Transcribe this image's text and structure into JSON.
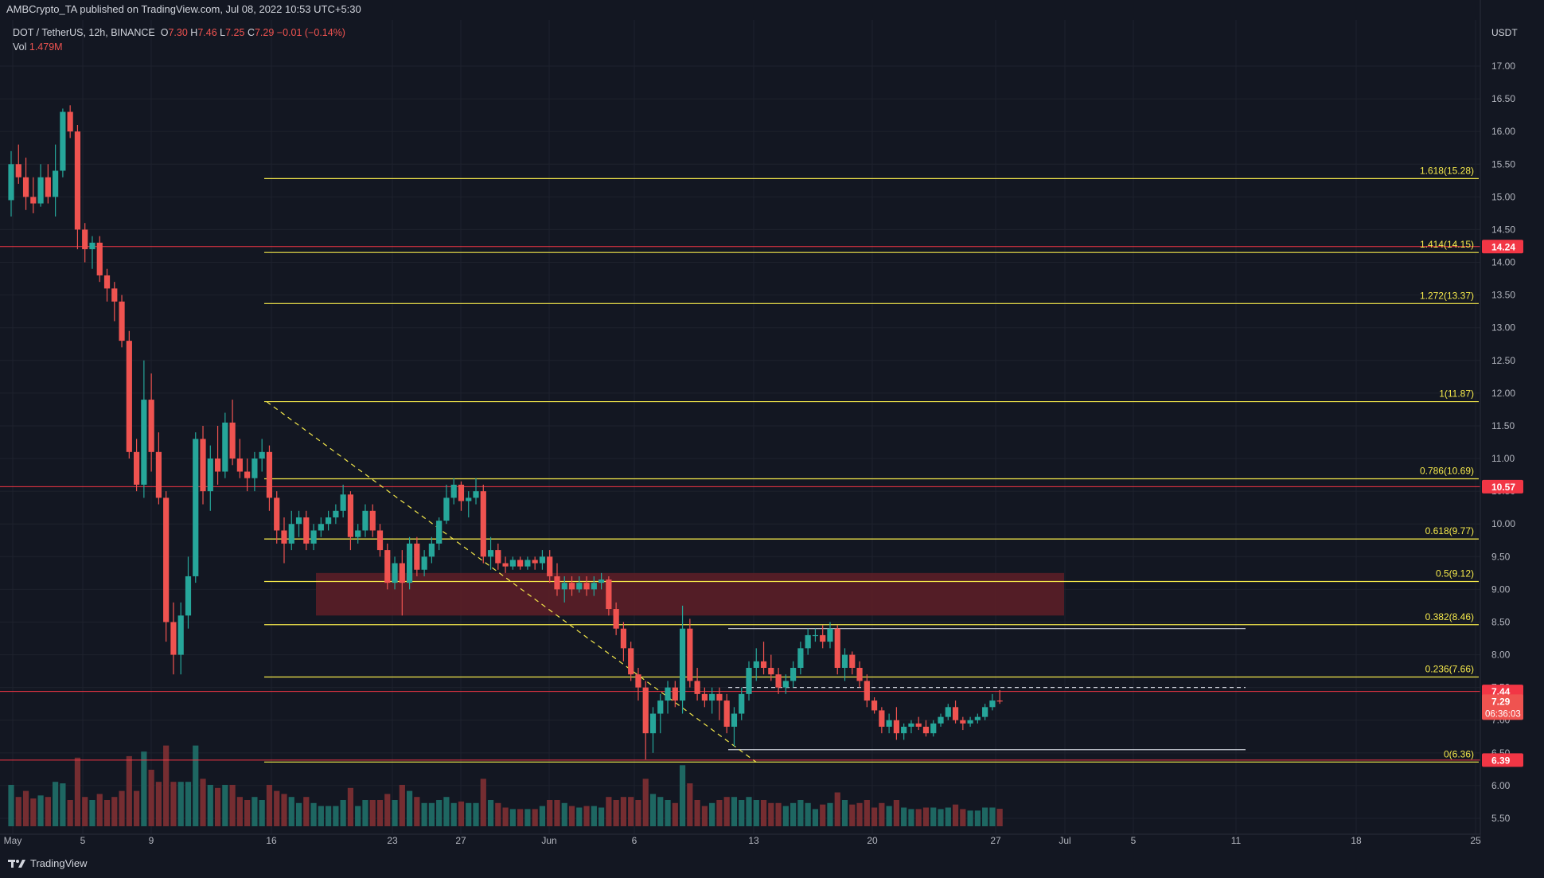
{
  "header": {
    "published_by": "AMBCrypto_TA published on TradingView.com, Jul 08, 2022 10:53 UTC+5:30"
  },
  "symbol": {
    "pair": "DOT / TetherUS, 12h, BINANCE",
    "open_label": "O",
    "open": "7.30",
    "high_label": "H",
    "high": "7.46",
    "low_label": "L",
    "low": "7.25",
    "close_label": "C",
    "close": "7.29",
    "change": "−0.01 (−0.14%)"
  },
  "volume": {
    "label": "Vol",
    "value": "1.479M"
  },
  "brand": {
    "name": "TradingView"
  },
  "colors": {
    "background": "#131722",
    "up": "#26a69a",
    "down": "#ef5350",
    "fib": "#f5e94b",
    "resistance": "#f23645",
    "zone": "#5b1e27",
    "range": "#d1d4dc"
  },
  "chart_data": {
    "type": "candlestick",
    "axis_currency": "USDT",
    "y_ticks": [
      "5.50",
      "6.00",
      "6.50",
      "7.00",
      "7.50",
      "8.00",
      "8.50",
      "9.00",
      "9.50",
      "10.00",
      "10.50",
      "11.00",
      "11.50",
      "12.00",
      "12.50",
      "13.00",
      "13.50",
      "14.00",
      "14.50",
      "15.00",
      "15.50",
      "16.00",
      "16.50",
      "17.00"
    ],
    "ylim": [
      5.3,
      17.5
    ],
    "x_tick_labels": [
      "May",
      "5",
      "9",
      "16",
      "23",
      "27",
      "Jun",
      "6",
      "13",
      "20",
      "27",
      "Jul",
      "5",
      "11",
      "18",
      "25"
    ],
    "fib_levels": [
      {
        "label": "1.618(15.28)",
        "value": 15.28
      },
      {
        "label": "1.414(14.15)",
        "value": 14.15
      },
      {
        "label": "1.272(13.37)",
        "value": 13.37
      },
      {
        "label": "1(11.87)",
        "value": 11.87
      },
      {
        "label": "0.786(10.69)",
        "value": 10.69
      },
      {
        "label": "0.618(9.77)",
        "value": 9.77
      },
      {
        "label": "0.5(9.12)",
        "value": 9.12
      },
      {
        "label": "0.382(8.46)",
        "value": 8.46
      },
      {
        "label": "0.236(7.66)",
        "value": 7.66
      },
      {
        "label": "0(6.36)",
        "value": 6.36
      }
    ],
    "horizontal_levels": [
      {
        "label": "14.24",
        "value": 14.24
      },
      {
        "label": "10.57",
        "value": 10.57
      },
      {
        "label": "7.44",
        "value": 7.44
      },
      {
        "label": "6.39",
        "value": 6.39
      }
    ],
    "current_price": {
      "label": "7.29",
      "value": 7.29,
      "countdown": "06:36:03"
    },
    "demand_zone": {
      "low": 8.6,
      "high": 9.25
    },
    "range_lines": {
      "high": 8.4,
      "mid": 7.5,
      "low": 6.55
    },
    "trendline": {
      "from": 11.87,
      "to": 6.36
    },
    "candles": [
      [
        14.95,
        15.7,
        14.7,
        15.5
      ],
      [
        15.5,
        15.8,
        15.2,
        15.3
      ],
      [
        15.3,
        15.6,
        14.8,
        15.0
      ],
      [
        15.0,
        15.3,
        14.75,
        14.9
      ],
      [
        14.9,
        15.5,
        14.85,
        15.3
      ],
      [
        15.3,
        15.5,
        14.9,
        15.0
      ],
      [
        15.0,
        15.8,
        14.7,
        15.4
      ],
      [
        15.4,
        16.35,
        15.3,
        16.3
      ],
      [
        16.3,
        16.4,
        15.9,
        16.0
      ],
      [
        16.0,
        16.1,
        14.2,
        14.5
      ],
      [
        14.5,
        14.6,
        14.0,
        14.2
      ],
      [
        14.2,
        14.4,
        13.9,
        14.3
      ],
      [
        14.3,
        14.4,
        13.7,
        13.8
      ],
      [
        13.8,
        13.9,
        13.4,
        13.6
      ],
      [
        13.6,
        13.7,
        13.1,
        13.4
      ],
      [
        13.4,
        13.5,
        12.7,
        12.8
      ],
      [
        12.8,
        12.95,
        11.0,
        11.1
      ],
      [
        11.1,
        11.3,
        10.5,
        10.6
      ],
      [
        10.6,
        12.5,
        10.4,
        11.9
      ],
      [
        11.9,
        12.3,
        10.8,
        11.1
      ],
      [
        11.1,
        11.4,
        10.3,
        10.4
      ],
      [
        10.4,
        10.5,
        8.2,
        8.5
      ],
      [
        8.5,
        8.8,
        7.7,
        8.0
      ],
      [
        8.0,
        8.8,
        7.7,
        8.6
      ],
      [
        8.6,
        9.5,
        8.4,
        9.2
      ],
      [
        9.2,
        11.4,
        9.1,
        11.3
      ],
      [
        11.3,
        11.5,
        10.3,
        10.5
      ],
      [
        10.5,
        11.2,
        10.2,
        11.0
      ],
      [
        11.0,
        11.5,
        10.6,
        10.8
      ],
      [
        10.8,
        11.7,
        10.7,
        11.55
      ],
      [
        11.55,
        11.9,
        10.9,
        11.0
      ],
      [
        11.0,
        11.3,
        10.7,
        10.8
      ],
      [
        10.8,
        11.0,
        10.5,
        10.7
      ],
      [
        10.7,
        11.1,
        10.5,
        11.0
      ],
      [
        11.0,
        11.3,
        10.8,
        11.1
      ],
      [
        11.1,
        11.2,
        10.2,
        10.4
      ],
      [
        10.4,
        10.5,
        9.7,
        9.9
      ],
      [
        9.9,
        10.1,
        9.4,
        9.7
      ],
      [
        9.7,
        10.2,
        9.6,
        10.0
      ],
      [
        10.0,
        10.2,
        9.8,
        10.1
      ],
      [
        10.1,
        10.2,
        9.6,
        9.7
      ],
      [
        9.7,
        10.0,
        9.6,
        9.9
      ],
      [
        9.9,
        10.1,
        9.8,
        10.0
      ],
      [
        10.0,
        10.2,
        9.9,
        10.1
      ],
      [
        10.1,
        10.3,
        10.0,
        10.2
      ],
      [
        10.2,
        10.6,
        10.1,
        10.45
      ],
      [
        10.45,
        10.5,
        9.6,
        9.8
      ],
      [
        9.8,
        10.0,
        9.7,
        9.9
      ],
      [
        9.9,
        10.3,
        9.8,
        10.2
      ],
      [
        10.2,
        10.3,
        9.8,
        9.9
      ],
      [
        9.9,
        10.0,
        9.5,
        9.6
      ],
      [
        9.6,
        9.7,
        9.0,
        9.1
      ],
      [
        9.1,
        9.5,
        9.0,
        9.4
      ],
      [
        9.4,
        9.6,
        8.6,
        9.1
      ],
      [
        9.1,
        9.8,
        9.0,
        9.7
      ],
      [
        9.7,
        9.8,
        9.2,
        9.3
      ],
      [
        9.3,
        9.6,
        9.2,
        9.5
      ],
      [
        9.5,
        9.8,
        9.4,
        9.7
      ],
      [
        9.7,
        10.1,
        9.6,
        10.05
      ],
      [
        10.05,
        10.6,
        10.0,
        10.4
      ],
      [
        10.4,
        10.7,
        10.3,
        10.6
      ],
      [
        10.6,
        10.65,
        10.2,
        10.35
      ],
      [
        10.35,
        10.5,
        10.1,
        10.4
      ],
      [
        10.4,
        10.7,
        10.3,
        10.5
      ],
      [
        10.5,
        10.6,
        9.4,
        9.5
      ],
      [
        9.5,
        9.8,
        9.3,
        9.6
      ],
      [
        9.6,
        9.7,
        9.3,
        9.4
      ],
      [
        9.4,
        9.5,
        9.25,
        9.35
      ],
      [
        9.35,
        9.5,
        9.3,
        9.45
      ],
      [
        9.45,
        9.5,
        9.3,
        9.35
      ],
      [
        9.35,
        9.5,
        9.3,
        9.45
      ],
      [
        9.45,
        9.5,
        9.3,
        9.4
      ],
      [
        9.4,
        9.6,
        9.3,
        9.5
      ],
      [
        9.5,
        9.6,
        9.1,
        9.2
      ],
      [
        9.2,
        9.4,
        8.9,
        9.0
      ],
      [
        9.0,
        9.2,
        8.8,
        9.1
      ],
      [
        9.1,
        9.2,
        8.9,
        9.0
      ],
      [
        9.0,
        9.2,
        8.95,
        9.1
      ],
      [
        9.1,
        9.2,
        8.9,
        9.0
      ],
      [
        9.0,
        9.2,
        8.9,
        9.1
      ],
      [
        9.1,
        9.25,
        9.0,
        9.15
      ],
      [
        9.15,
        9.2,
        8.6,
        8.7
      ],
      [
        8.7,
        8.8,
        8.3,
        8.4
      ],
      [
        8.4,
        8.5,
        7.9,
        8.1
      ],
      [
        8.1,
        8.2,
        7.6,
        7.7
      ],
      [
        7.7,
        7.8,
        7.3,
        7.5
      ],
      [
        7.5,
        7.6,
        6.4,
        6.8
      ],
      [
        6.8,
        7.2,
        6.5,
        7.1
      ],
      [
        7.1,
        7.4,
        6.8,
        7.3
      ],
      [
        7.3,
        7.6,
        7.1,
        7.5
      ],
      [
        7.5,
        7.6,
        7.2,
        7.3
      ],
      [
        7.3,
        8.75,
        7.1,
        8.4
      ],
      [
        8.4,
        8.55,
        7.5,
        7.6
      ],
      [
        7.6,
        7.8,
        7.3,
        7.4
      ],
      [
        7.4,
        7.5,
        7.2,
        7.3
      ],
      [
        7.3,
        7.5,
        7.1,
        7.4
      ],
      [
        7.4,
        7.5,
        7.0,
        7.3
      ],
      [
        7.3,
        7.4,
        6.8,
        6.9
      ],
      [
        6.9,
        7.2,
        6.6,
        7.1
      ],
      [
        7.1,
        7.5,
        7.0,
        7.4
      ],
      [
        7.4,
        7.9,
        7.3,
        7.8
      ],
      [
        7.8,
        8.1,
        7.6,
        7.9
      ],
      [
        7.9,
        8.2,
        7.7,
        7.8
      ],
      [
        7.8,
        8.0,
        7.6,
        7.7
      ],
      [
        7.7,
        7.8,
        7.4,
        7.5
      ],
      [
        7.5,
        7.7,
        7.4,
        7.6
      ],
      [
        7.6,
        7.9,
        7.5,
        7.8
      ],
      [
        7.8,
        8.2,
        7.7,
        8.1
      ],
      [
        8.1,
        8.4,
        8.0,
        8.3
      ],
      [
        8.3,
        8.4,
        8.2,
        8.3
      ],
      [
        8.3,
        8.45,
        8.1,
        8.2
      ],
      [
        8.2,
        8.5,
        8.1,
        8.4
      ],
      [
        8.4,
        8.45,
        7.7,
        7.8
      ],
      [
        7.8,
        8.1,
        7.6,
        8.0
      ],
      [
        8.0,
        8.05,
        7.7,
        7.8
      ],
      [
        7.8,
        7.9,
        7.5,
        7.6
      ],
      [
        7.6,
        7.7,
        7.2,
        7.3
      ],
      [
        7.3,
        7.35,
        7.1,
        7.15
      ],
      [
        7.15,
        7.2,
        6.8,
        6.9
      ],
      [
        6.9,
        7.1,
        6.8,
        7.0
      ],
      [
        7.0,
        7.2,
        6.7,
        6.8
      ],
      [
        6.8,
        6.95,
        6.7,
        6.9
      ],
      [
        6.9,
        7.0,
        6.8,
        6.95
      ],
      [
        6.95,
        7.05,
        6.85,
        6.9
      ],
      [
        6.9,
        7.0,
        6.75,
        6.8
      ],
      [
        6.8,
        7.0,
        6.75,
        6.95
      ],
      [
        6.95,
        7.1,
        6.9,
        7.05
      ],
      [
        7.05,
        7.25,
        7.0,
        7.2
      ],
      [
        7.2,
        7.3,
        6.95,
        7.0
      ],
      [
        7.0,
        7.05,
        6.85,
        6.95
      ],
      [
        6.95,
        7.05,
        6.9,
        7.0
      ],
      [
        7.0,
        7.1,
        6.95,
        7.05
      ],
      [
        7.05,
        7.25,
        7.0,
        7.2
      ],
      [
        7.2,
        7.4,
        7.15,
        7.3
      ],
      [
        7.3,
        7.46,
        7.25,
        7.29
      ]
    ]
  }
}
